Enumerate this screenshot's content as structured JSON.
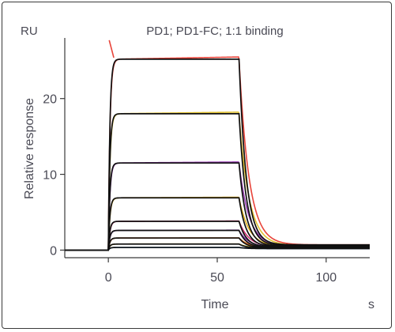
{
  "chart_data": {
    "type": "line",
    "title": "PD1; PD1-FC; 1:1 binding",
    "xlabel": "Time",
    "ylabel": "Relative response",
    "x_unit": "s",
    "y_unit": "RU",
    "xlim": [
      -20,
      120
    ],
    "ylim": [
      -1,
      28
    ],
    "x_ticks": [
      0,
      50,
      100
    ],
    "y_ticks": [
      0,
      10,
      20
    ],
    "grid": false,
    "legend": "none",
    "association_start": 0,
    "dissociation_start": 60,
    "end_time": 120,
    "series": [
      {
        "plateau": 25.2,
        "residual": 0.7,
        "color": "#e8443a"
      },
      {
        "plateau": 18.0,
        "residual": 0.6,
        "color": "#e0c030"
      },
      {
        "plateau": 11.5,
        "residual": 0.5,
        "color": "#9b3fb5"
      },
      {
        "plateau": 6.9,
        "residual": 0.45,
        "color": "#e0b020"
      },
      {
        "plateau": 3.8,
        "residual": 0.4,
        "color": "#d03070"
      },
      {
        "plateau": 2.6,
        "residual": 0.35,
        "color": "#8a3fb0"
      },
      {
        "plateau": 1.6,
        "residual": 0.3,
        "color": "#e07020"
      },
      {
        "plateau": 0.8,
        "residual": 0.25,
        "color": "#c0a020"
      },
      {
        "plateau": 0.35,
        "residual": 0.2,
        "color": "#3a8ad0"
      }
    ],
    "fit_color": "#111111"
  }
}
